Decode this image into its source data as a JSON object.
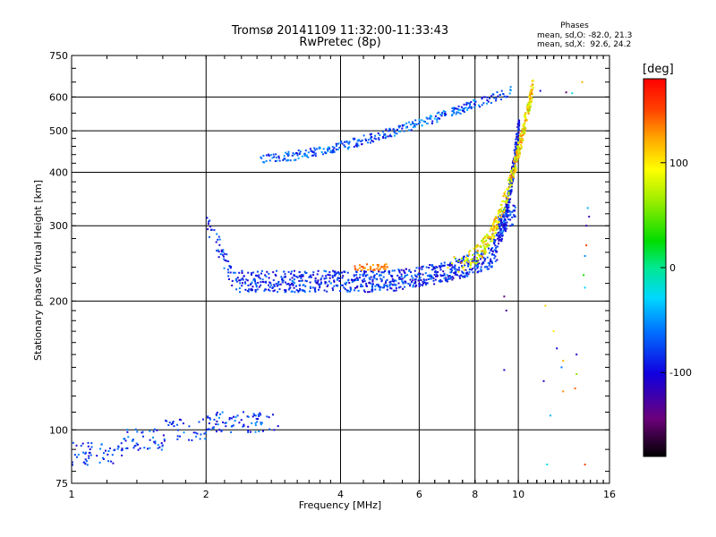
{
  "chart_data": {
    "type": "scatter",
    "title": "Tromsø 20141109 11:32:00-11:33:43",
    "subtitle": "RwPretec (8p)",
    "xlabel": "Frequency [MHz]",
    "ylabel": "Stationary phase Virtual Height [km]",
    "x_scale": "log",
    "y_scale": "log",
    "xlim": [
      1,
      16
    ],
    "ylim": [
      75,
      750
    ],
    "x_ticks": [
      1,
      2,
      4,
      6,
      8,
      10,
      16
    ],
    "y_ticks": [
      75,
      100,
      200,
      300,
      400,
      500,
      600,
      750
    ],
    "grid": true,
    "phase_stats": {
      "heading": "Phases",
      "o_mode": "mean, sd,O: -82.0, 21.3",
      "x_mode": "mean, sd,X:  92.6, 24.2"
    },
    "colorbar": {
      "label": "[deg]",
      "range": [
        -180,
        180
      ],
      "ticks": [
        100,
        0,
        -100
      ],
      "colormap": "rainbow"
    },
    "traces": [
      {
        "x_range": [
          1.0,
          2.9
        ],
        "height_range": [
          85,
          120
        ],
        "phase_range": [
          -110,
          -50
        ]
      },
      {
        "x_range": [
          2.0,
          10.0
        ],
        "height": "lower E-F1 trace 215 → 330",
        "phase_range": [
          -120,
          -60
        ]
      },
      {
        "x_range": [
          2.65,
          9.8
        ],
        "height": "upper trace 430 → 620",
        "phase_range": [
          -110,
          -40
        ]
      },
      {
        "x_range": [
          6.8,
          10.8
        ],
        "height": "X-mode 250 → 640",
        "phase_range": [
          60,
          140
        ]
      },
      {
        "x_range": [
          9.3,
          14.5
        ],
        "height_range": [
          80,
          330
        ],
        "phase_range": [
          -140,
          120
        ]
      }
    ]
  }
}
